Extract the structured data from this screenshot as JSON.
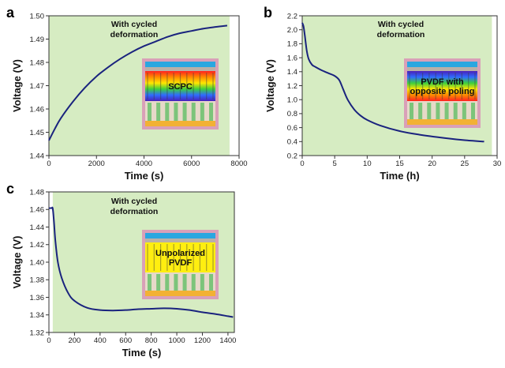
{
  "colors": {
    "plot_bg": "#d6ecc2",
    "curve": "#1a237e",
    "inset_frame": "#d9a0b8",
    "inset_blue_bar": "#2aa7e0",
    "inset_gray_bar": "#b9b0a8",
    "inset_gold_bar": "#f2b134",
    "inset_pillar": "#7cc47a",
    "inset_yellow": "#ffee10"
  },
  "chart_data": [
    {
      "type": "line",
      "panel_label": "a",
      "xlabel": "Time (s)",
      "ylabel": "Voltage (V)",
      "xlim": [
        0,
        8000
      ],
      "ylim": [
        1.44,
        1.5
      ],
      "xticks": [
        0,
        2000,
        4000,
        6000,
        8000
      ],
      "yticks": [
        1.44,
        1.45,
        1.46,
        1.47,
        1.48,
        1.49,
        1.5
      ],
      "ytick_labels": [
        "1.44",
        "1.45",
        "1.46",
        "1.47",
        "1.48",
        "1.49",
        "1.50"
      ],
      "shaded_region": [
        0,
        7600
      ],
      "annotation": [
        "With cycled",
        "deformation"
      ],
      "inset": {
        "style": "rainbow",
        "label": [
          "SCPC"
        ]
      },
      "series": [
        {
          "x": [
            0,
            250,
            500,
            1000,
            1500,
            2000,
            2500,
            3000,
            3500,
            4000,
            4500,
            5000,
            5500,
            6000,
            6500,
            7000,
            7500
          ],
          "y": [
            1.4465,
            1.4515,
            1.456,
            1.463,
            1.469,
            1.474,
            1.478,
            1.4815,
            1.4845,
            1.487,
            1.489,
            1.491,
            1.4925,
            1.4935,
            1.4945,
            1.4952,
            1.4958
          ]
        }
      ]
    },
    {
      "type": "line",
      "panel_label": "b",
      "xlabel": "Time (h)",
      "ylabel": "Voltage (V)",
      "xlim": [
        0,
        30
      ],
      "ylim": [
        0.2,
        2.2
      ],
      "xticks": [
        0,
        5,
        10,
        15,
        20,
        25,
        30
      ],
      "yticks": [
        0.2,
        0.4,
        0.6,
        0.8,
        1.0,
        1.2,
        1.4,
        1.6,
        1.8,
        2.0,
        2.2
      ],
      "ytick_labels": [
        "0.2",
        "0.4",
        "0.6",
        "0.8",
        "1.0",
        "1.2",
        "1.4",
        "1.6",
        "1.8",
        "2.0",
        "2.2"
      ],
      "shaded_region": [
        0,
        29.2
      ],
      "annotation": [
        "With cycled",
        "deformation"
      ],
      "inset": {
        "style": "reverse-rainbow",
        "label": [
          "PVDF with",
          "opposite poling"
        ]
      },
      "series": [
        {
          "x": [
            0,
            0.2,
            0.4,
            0.7,
            1,
            1.5,
            2,
            3,
            4,
            5,
            5.7,
            6.3,
            7,
            8,
            9,
            10,
            12,
            15,
            18,
            22,
            25,
            28
          ],
          "y": [
            2.1,
            2.05,
            1.92,
            1.7,
            1.58,
            1.5,
            1.47,
            1.42,
            1.38,
            1.34,
            1.28,
            1.15,
            1.0,
            0.86,
            0.77,
            0.71,
            0.63,
            0.55,
            0.5,
            0.45,
            0.42,
            0.4
          ]
        }
      ]
    },
    {
      "type": "line",
      "panel_label": "c",
      "xlabel": "Time (s)",
      "ylabel": "Voltage (V)",
      "xlim": [
        0,
        1450
      ],
      "ylim": [
        1.32,
        1.48
      ],
      "xticks": [
        0,
        200,
        400,
        600,
        800,
        1000,
        1200,
        1400
      ],
      "yticks": [
        1.32,
        1.34,
        1.36,
        1.38,
        1.4,
        1.42,
        1.44,
        1.46,
        1.48
      ],
      "ytick_labels": [
        "1.32",
        "1.34",
        "1.36",
        "1.38",
        "1.40",
        "1.42",
        "1.44",
        "1.46",
        "1.48"
      ],
      "shaded_region": [
        30,
        1450
      ],
      "annotation": [
        "With cycled",
        "deformation"
      ],
      "inset": {
        "style": "yellow",
        "label": [
          "Unpolarized",
          "PVDF"
        ]
      },
      "series": [
        {
          "x": [
            0,
            20,
            30,
            40,
            50,
            70,
            100,
            150,
            200,
            300,
            400,
            500,
            600,
            700,
            800,
            900,
            1000,
            1100,
            1200,
            1300,
            1400,
            1440
          ],
          "y": [
            1.4615,
            1.4615,
            1.461,
            1.445,
            1.425,
            1.4,
            1.382,
            1.365,
            1.356,
            1.348,
            1.3455,
            1.345,
            1.3455,
            1.3465,
            1.347,
            1.3475,
            1.347,
            1.3455,
            1.343,
            1.341,
            1.3385,
            1.3375
          ]
        }
      ]
    }
  ]
}
